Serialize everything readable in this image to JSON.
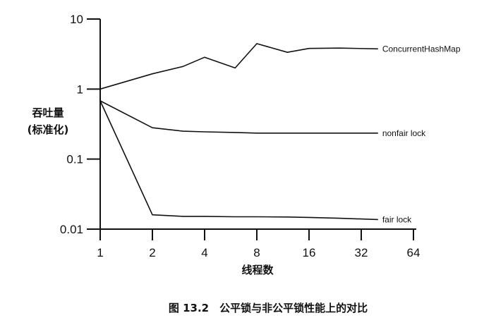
{
  "chart_data": {
    "type": "line",
    "title": "",
    "xlabel": "线程数",
    "ylabel_line1": "吞吐量",
    "ylabel_line2": "(标准化)",
    "x_scale": "log2",
    "y_scale": "log10",
    "xlim": [
      1,
      64
    ],
    "ylim": [
      0.01,
      10
    ],
    "x_ticks": [
      1,
      2,
      4,
      8,
      16,
      32,
      64
    ],
    "x_tick_labels": [
      "1",
      "2",
      "4",
      "8",
      "16",
      "32",
      "64"
    ],
    "y_ticks": [
      0.01,
      0.1,
      1,
      10
    ],
    "y_tick_labels": [
      "0.01",
      "0.1",
      "1",
      "10"
    ],
    "grid": false,
    "series": [
      {
        "name": "ConcurrentHashMap",
        "x": [
          1,
          2,
          3,
          4,
          6,
          8,
          12,
          16,
          24,
          40
        ],
        "y": [
          1.0,
          1.65,
          2.1,
          2.85,
          2.0,
          4.45,
          3.35,
          3.8,
          3.85,
          3.75
        ]
      },
      {
        "name": "nonfair lock",
        "x": [
          1,
          2,
          3,
          4,
          6,
          8,
          12,
          16,
          24,
          40
        ],
        "y": [
          0.68,
          0.28,
          0.25,
          0.245,
          0.24,
          0.235,
          0.235,
          0.235,
          0.235,
          0.235
        ]
      },
      {
        "name": "fair lock",
        "x": [
          1,
          2,
          3,
          4,
          6,
          8,
          12,
          16,
          24,
          40
        ],
        "y": [
          0.68,
          0.016,
          0.0152,
          0.0152,
          0.015,
          0.015,
          0.0149,
          0.0147,
          0.0143,
          0.0137
        ]
      }
    ]
  },
  "caption": "图 13.2　公平锁与非公平锁性能上的对比"
}
